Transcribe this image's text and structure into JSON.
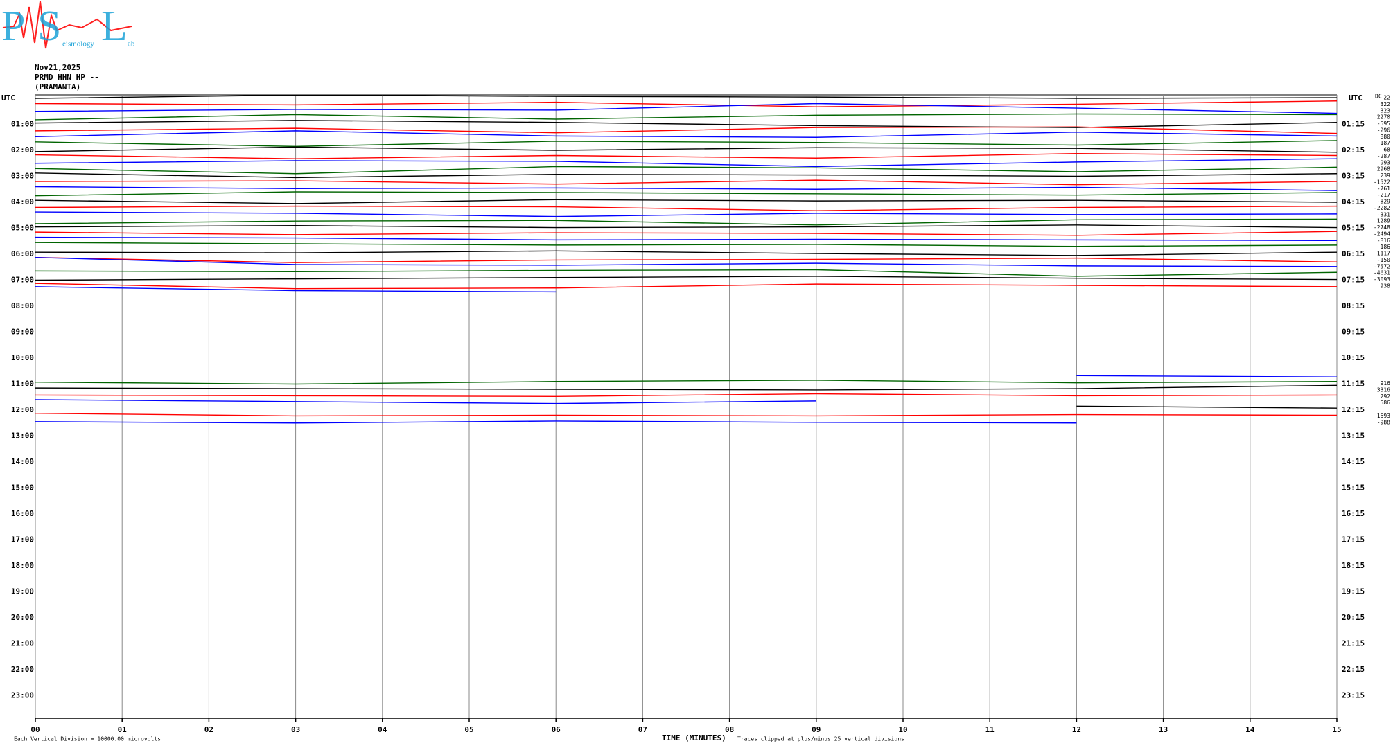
{
  "chart_data": {
    "type": "helicorder",
    "header": [
      "Nov21,2025",
      "PRMD HHN HP --",
      "(PRAMANTA)"
    ],
    "logo": {
      "letters": [
        "P",
        "S",
        "L"
      ],
      "small": [
        "eismology",
        "ab"
      ]
    },
    "left_axis_label": "UTC",
    "right_axis_label": "UTC",
    "left_times": [
      "01:00",
      "02:00",
      "03:00",
      "04:00",
      "05:00",
      "06:00",
      "07:00",
      "08:00",
      "09:00",
      "10:00",
      "11:00",
      "12:00",
      "13:00",
      "14:00",
      "15:00",
      "16:00",
      "17:00",
      "18:00",
      "19:00",
      "20:00",
      "21:00",
      "22:00",
      "23:00"
    ],
    "right_times": [
      "01:15",
      "02:15",
      "03:15",
      "04:15",
      "05:15",
      "06:15",
      "07:15",
      "08:15",
      "09:15",
      "10:15",
      "11:15",
      "12:15",
      "13:15",
      "14:15",
      "15:15",
      "16:15",
      "17:15",
      "18:15",
      "19:15",
      "20:15",
      "21:15",
      "22:15",
      "23:15"
    ],
    "xlabel": "TIME (MINUTES)",
    "footer_left": "Each Vertical Division = 10000.00 microvolts",
    "footer_right": "Traces clipped at plus/minus 25 vertical divisions",
    "xlim": [
      0,
      15
    ],
    "xticks": [
      {
        "value": 0,
        "label": "00"
      },
      {
        "value": 1,
        "label": "01"
      },
      {
        "value": 2,
        "label": "02"
      },
      {
        "value": 3,
        "label": "03"
      },
      {
        "value": 4,
        "label": "04"
      },
      {
        "value": 5,
        "label": "05"
      },
      {
        "value": 6,
        "label": "06"
      },
      {
        "value": 7,
        "label": "07"
      },
      {
        "value": 8,
        "label": "08"
      },
      {
        "value": 9,
        "label": "09"
      },
      {
        "value": 10,
        "label": "10"
      },
      {
        "value": 11,
        "label": "11"
      },
      {
        "value": 12,
        "label": "12"
      },
      {
        "value": 13,
        "label": "13"
      },
      {
        "value": 14,
        "label": "14"
      },
      {
        "value": 15,
        "label": "15"
      }
    ],
    "x": [
      0,
      3,
      6,
      9,
      12,
      15
    ],
    "dc_label": "DC",
    "traces": [
      {
        "row": 0,
        "color": "#000000",
        "offset": 22,
        "values": [
          0,
          0.5,
          0.3,
          0.2,
          0,
          0.1
        ]
      },
      {
        "row": 1,
        "color": "#ff0000",
        "offset": 322,
        "values": [
          0.2,
          0,
          0.4,
          -0.3,
          0.1,
          0.6
        ]
      },
      {
        "row": 2,
        "color": "#0000ff",
        "offset": 323,
        "values": [
          0,
          0.3,
          0.2,
          1.2,
          0.5,
          -0.3
        ]
      },
      {
        "row": 3,
        "color": "#006400",
        "offset": 2270,
        "values": [
          -0.3,
          0.5,
          -0.2,
          0.4,
          0.6,
          0.5
        ]
      },
      {
        "row": 4,
        "color": "#000000",
        "offset": -595,
        "values": [
          0.2,
          0.6,
          0.3,
          -0.2,
          -0.5,
          0.3
        ]
      },
      {
        "row": 5,
        "color": "#ff0000",
        "offset": -296,
        "values": [
          0,
          0.4,
          -0.3,
          0.5,
          0.6,
          -0.4
        ]
      },
      {
        "row": 6,
        "color": "#0000ff",
        "offset": 880,
        "values": [
          0.1,
          1.0,
          0.2,
          0,
          0.8,
          0.2
        ]
      },
      {
        "row": 7,
        "color": "#006400",
        "offset": 187,
        "values": [
          0.3,
          -0.4,
          0.4,
          0.2,
          -0.2,
          0.5
        ]
      },
      {
        "row": 8,
        "color": "#000000",
        "offset": 68,
        "values": [
          -0.2,
          0.5,
          0,
          0.4,
          0.3,
          -0.3
        ]
      },
      {
        "row": 9,
        "color": "#ff0000",
        "offset": -287,
        "values": [
          0.3,
          -0.3,
          0.2,
          -0.2,
          0.5,
          0.2
        ]
      },
      {
        "row": 10,
        "color": "#0000ff",
        "offset": 993,
        "values": [
          0,
          0.4,
          0.3,
          -0.5,
          0.2,
          0.7
        ]
      },
      {
        "row": 11,
        "color": "#006400",
        "offset": 2968,
        "values": [
          0.2,
          -0.6,
          0.5,
          0.3,
          -0.3,
          0.4
        ]
      },
      {
        "row": 12,
        "color": "#000000",
        "offset": 239,
        "values": [
          0.5,
          -0.2,
          0.3,
          0.2,
          0,
          0.4
        ]
      },
      {
        "row": 13,
        "color": "#ff0000",
        "offset": -1522,
        "values": [
          0.2,
          0.3,
          -0.2,
          0.4,
          -0.3,
          0.2
        ]
      },
      {
        "row": 14,
        "color": "#0000ff",
        "offset": -761,
        "values": [
          0.4,
          0.1,
          0.2,
          0,
          0.3,
          -0.2
        ]
      },
      {
        "row": 15,
        "color": "#006400",
        "offset": -217,
        "values": [
          0,
          0.6,
          0.5,
          0.3,
          0.1,
          0.5
        ]
      },
      {
        "row": 16,
        "color": "#000000",
        "offset": -829,
        "values": [
          0.3,
          -0.2,
          0.4,
          0.2,
          0.3,
          0
        ]
      },
      {
        "row": 17,
        "color": "#ff0000",
        "offset": -2282,
        "values": [
          0.2,
          0.4,
          0.3,
          -0.3,
          0.2,
          0.4
        ]
      },
      {
        "row": 18,
        "color": "#0000ff",
        "offset": -331,
        "values": [
          0.5,
          0.3,
          -0.2,
          0.3,
          0.1,
          0.2
        ]
      },
      {
        "row": 19,
        "color": "#006400",
        "offset": 1289,
        "values": [
          -0.3,
          0.1,
          0.2,
          -0.5,
          0.3,
          0.4
        ]
      },
      {
        "row": 20,
        "color": "#000000",
        "offset": -2748,
        "values": [
          0.2,
          0.4,
          0.1,
          0.2,
          0.5,
          0.1
        ]
      },
      {
        "row": 21,
        "color": "#ff0000",
        "offset": -2494,
        "values": [
          0.4,
          0,
          0.3,
          0.2,
          -0.1,
          0.5
        ]
      },
      {
        "row": 22,
        "color": "#0000ff",
        "offset": -816,
        "values": [
          0.6,
          0.5,
          0.2,
          0.3,
          0.2,
          0.1
        ]
      },
      {
        "row": 23,
        "color": "#006400",
        "offset": 186,
        "values": [
          0.8,
          0.6,
          0.4,
          0.5,
          0.2,
          0.4
        ]
      },
      {
        "row": 24,
        "color": "#000000",
        "offset": 1117,
        "values": [
          0.3,
          0.2,
          0.5,
          0.1,
          -0.2,
          0.3
        ]
      },
      {
        "row": 25,
        "color": "#ff0000",
        "offset": -150,
        "values": [
          0.5,
          -0.3,
          0.1,
          0.2,
          0.4,
          -0.2
        ]
      },
      {
        "row": 26,
        "color": "#0000ff",
        "offset": -7572,
        "values": [
          1.5,
          0.4,
          0.3,
          0.6,
          0.2,
          0.1
        ]
      },
      {
        "row": 27,
        "color": "#006400",
        "offset": -4631,
        "values": [
          0.4,
          0.3,
          0.5,
          0.6,
          -0.4,
          0.2
        ]
      },
      {
        "row": 28,
        "color": "#000000",
        "offset": -3093,
        "values": [
          0,
          0.2,
          0.4,
          0.6,
          0.3,
          0.1
        ]
      },
      {
        "row": 29,
        "color": "#ff0000",
        "offset": 938,
        "values": [
          0.5,
          -0.3,
          -0.2,
          0.4,
          0.2,
          0
        ]
      },
      {
        "row": 30,
        "color": "#0000ff",
        "values": [
          1.0,
          0.4,
          0.2,
          null,
          null,
          null
        ]
      },
      {
        "row": 43,
        "color": "#0000ff",
        "values": [
          null,
          null,
          null,
          null,
          0.3,
          0.1
        ]
      },
      {
        "row": 44,
        "color": "#006400",
        "offset": 916,
        "values": [
          0.3,
          0,
          0.4,
          0.6,
          0.2,
          0.4
        ]
      },
      {
        "row": 45,
        "color": "#000000",
        "offset": 3316,
        "values": [
          0.4,
          0.3,
          0.2,
          0.1,
          0.3,
          0.8
        ]
      },
      {
        "row": 46,
        "color": "#ff0000",
        "offset": 292,
        "values": [
          0.3,
          0.2,
          0.1,
          0.5,
          0.2,
          0.3
        ]
      },
      {
        "row": 47,
        "color": "#0000ff",
        "offset": 586,
        "values": [
          0.6,
          0.3,
          0,
          0.4,
          null,
          null
        ]
      },
      {
        "row": 48,
        "color": "#000000",
        "values": [
          null,
          null,
          null,
          null,
          0.6,
          0.3
        ]
      },
      {
        "row": 49,
        "color": "#ff0000",
        "offset": 1693,
        "values": [
          0.5,
          0.1,
          0.2,
          0.1,
          0.3,
          0.2
        ]
      },
      {
        "row": 50,
        "color": "#0000ff",
        "offset": -988,
        "values": [
          0.2,
          0,
          0.3,
          0.1,
          0,
          null
        ]
      }
    ]
  }
}
